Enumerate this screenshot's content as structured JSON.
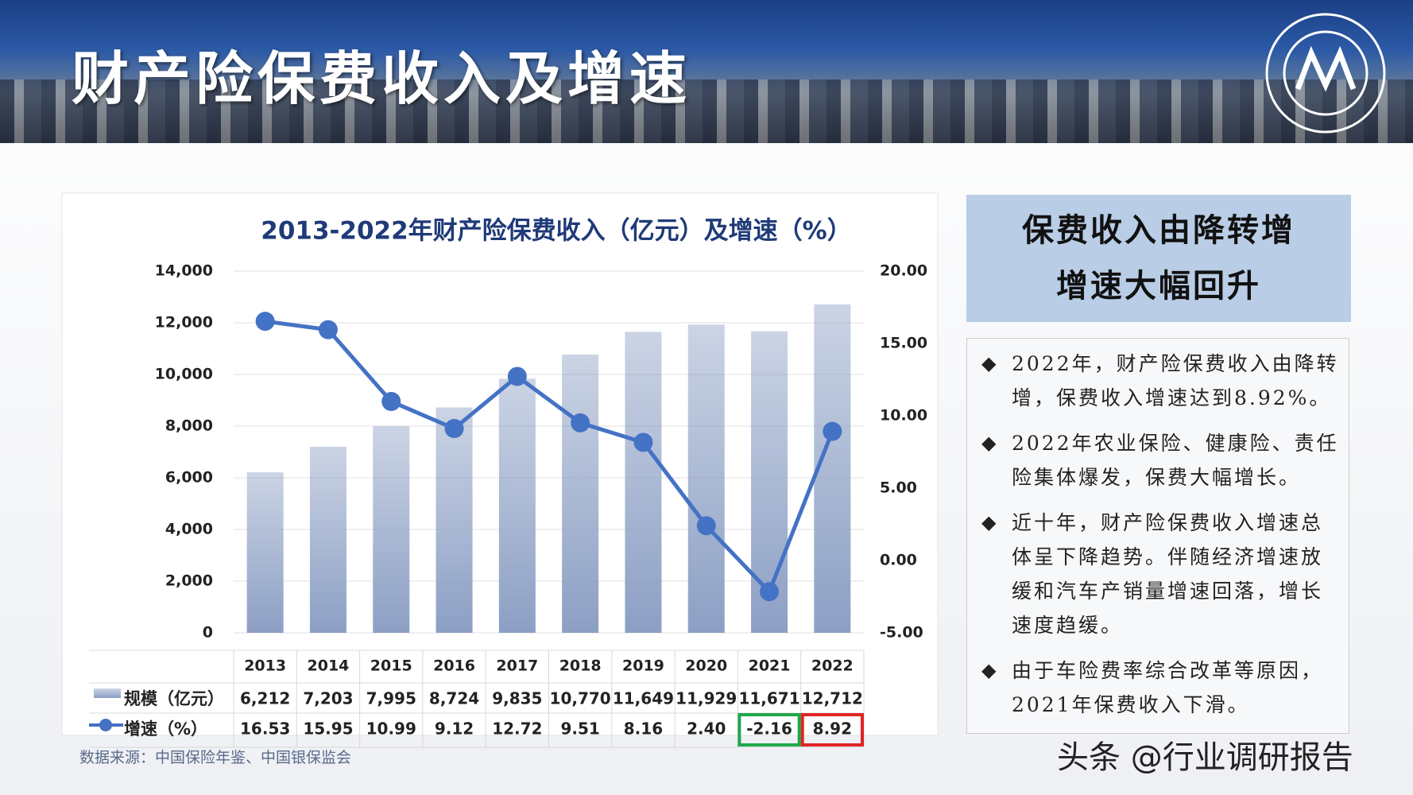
{
  "header": {
    "title": "财产险保费收入及增速"
  },
  "chart_data": {
    "type": "bar-line",
    "title": "2013-2022年财产险保费收入（亿元）及增速（%）",
    "categories": [
      "2013",
      "2014",
      "2015",
      "2016",
      "2017",
      "2018",
      "2019",
      "2020",
      "2021",
      "2022"
    ],
    "series": [
      {
        "name": "规模（亿元）",
        "type": "bar",
        "color": "#8c9fc4",
        "values": [
          6212,
          7203,
          7995,
          8724,
          9835,
          10770,
          11649,
          11929,
          11671,
          12712
        ],
        "value_labels": [
          "6,212",
          "7,203",
          "7,995",
          "8,724",
          "9,835",
          "10,770",
          "11,649",
          "11,929",
          "11,671",
          "12,712"
        ]
      },
      {
        "name": "增速（%）",
        "type": "line",
        "axis": "y2",
        "color": "#4472c4",
        "values": [
          16.53,
          15.95,
          10.99,
          9.12,
          12.72,
          9.51,
          8.16,
          2.4,
          -2.16,
          8.92
        ],
        "value_labels": [
          "16.53",
          "15.95",
          "10.99",
          "9.12",
          "12.72",
          "9.51",
          "8.16",
          "2.40",
          "-2.16",
          "8.92"
        ]
      }
    ],
    "ylim": [
      0,
      14000
    ],
    "yticks": [
      0,
      {
        "value": 2000,
        "label": "2,000"
      },
      {
        "value": 4000,
        "label": "4,000"
      },
      {
        "value": 6000,
        "label": "6,000"
      },
      {
        "value": 8000,
        "label": "8,000"
      },
      {
        "value": 10000,
        "label": "10,000"
      },
      {
        "value": 12000,
        "label": "12,000"
      },
      {
        "value": 14000,
        "label": "14,000"
      }
    ],
    "y2lim": [
      -5,
      20
    ],
    "y2ticks": [
      {
        "value": -5,
        "label": "-5.00"
      },
      {
        "value": 0,
        "label": "0.00"
      },
      {
        "value": 5,
        "label": "5.00"
      },
      {
        "value": 10,
        "label": "10.00"
      },
      {
        "value": 15,
        "label": "15.00"
      },
      {
        "value": 20,
        "label": "20.00"
      }
    ],
    "grid": true,
    "highlights": [
      {
        "index": 8,
        "color": "#1fa84a"
      },
      {
        "index": 9,
        "color": "#e02424"
      }
    ]
  },
  "source": "数据来源：中国保险年鉴、中国银保监会",
  "panel": {
    "title_lines": [
      "保费收入由降转增",
      "增速大幅回升"
    ],
    "bullets": [
      "2022年，财产险保费收入由降转增，保费收入增速达到8.92%。",
      "2022年农业保险、健康险、责任险集体爆发，保费大幅增长。",
      "近十年，财产险保费收入增速总体呈下降趋势。伴随经济增速放缓和汽车产销量增速回落，增长速度趋缓。",
      "由于车险费率综合改革等原因，2021年保费收入下滑。"
    ]
  },
  "watermark": "头条 @行业调研报告"
}
